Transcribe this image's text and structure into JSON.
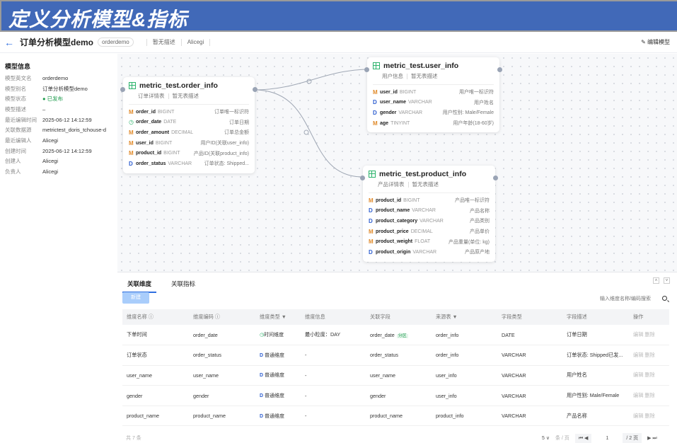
{
  "banner": {
    "title": "定义分析模型&指标"
  },
  "header": {
    "title": "订单分析模型demo",
    "tag": "orderdemo",
    "description": "暂无描述",
    "owner": "Alicegi",
    "edit_label": "编辑模型"
  },
  "info": {
    "heading": "模型信息",
    "rows": [
      {
        "k": "模型英文名",
        "v": "orderdemo"
      },
      {
        "k": "模型别名",
        "v": "订单分析模型demo"
      },
      {
        "k": "模型状态",
        "v": "● 已发布"
      },
      {
        "k": "模型描述",
        "v": "–"
      },
      {
        "k": "最近编辑时间",
        "v": "2025-06-12 14:12:59"
      },
      {
        "k": "关联数据源",
        "v": "metrictest_doris_tchouse-d"
      },
      {
        "k": "最近编辑人",
        "v": "Alicegi"
      },
      {
        "k": "创建时间",
        "v": "2025-06-12 14:12:59"
      },
      {
        "k": "创建人",
        "v": "Alicegi"
      },
      {
        "k": "负责人",
        "v": "Alicegi"
      }
    ]
  },
  "tables": [
    {
      "name": "metric_test.order_info",
      "alias": "订单详情表",
      "desc": "暂无表描述",
      "fields": [
        {
          "t": "M",
          "n": "order_id",
          "ty": "BIGINT",
          "d": "订单唯一标识符"
        },
        {
          "t": "T",
          "n": "order_date",
          "ty": "DATE",
          "d": "订单日期"
        },
        {
          "t": "M",
          "n": "order_amount",
          "ty": "DECIMAL",
          "d": "订单总金额"
        },
        {
          "t": "M",
          "n": "user_id",
          "ty": "BIGINT",
          "d": "用户ID(关联user_info)"
        },
        {
          "t": "M",
          "n": "product_id",
          "ty": "BIGINT",
          "d": "产品ID(关联product_info)"
        },
        {
          "t": "D",
          "n": "order_status",
          "ty": "VARCHAR",
          "d": "订单状态: Shipped..."
        }
      ]
    },
    {
      "name": "metric_test.user_info",
      "alias": "用户信息",
      "desc": "暂无表描述",
      "fields": [
        {
          "t": "M",
          "n": "user_id",
          "ty": "BIGINT",
          "d": "用户唯一标识符"
        },
        {
          "t": "D",
          "n": "user_name",
          "ty": "VARCHAR",
          "d": "用户姓名"
        },
        {
          "t": "D",
          "n": "gender",
          "ty": "VARCHAR",
          "d": "用户性别: Male/Female"
        },
        {
          "t": "M",
          "n": "age",
          "ty": "TINYINT",
          "d": "用户年龄(18-60岁)"
        }
      ]
    },
    {
      "name": "metric_test.product_info",
      "alias": "产品详情表",
      "desc": "暂无表描述",
      "fields": [
        {
          "t": "M",
          "n": "product_id",
          "ty": "BIGINT",
          "d": "产品唯一标识符"
        },
        {
          "t": "D",
          "n": "product_name",
          "ty": "VARCHAR",
          "d": "产品名称"
        },
        {
          "t": "D",
          "n": "product_category",
          "ty": "VARCHAR",
          "d": "产品类别"
        },
        {
          "t": "M",
          "n": "product_price",
          "ty": "DECIMAL",
          "d": "产品单价"
        },
        {
          "t": "M",
          "n": "product_weight",
          "ty": "FLOAT",
          "d": "产品重量(单位: kg)"
        },
        {
          "t": "D",
          "n": "product_origin",
          "ty": "VARCHAR",
          "d": "产品原产地"
        }
      ]
    }
  ],
  "bottom": {
    "tabs": [
      "关联维度",
      "关联指标"
    ],
    "new_label": "新建",
    "search_placeholder": "输入维度名称/编码搜索",
    "columns": [
      "维度名称 ⓘ",
      "维度编码 ⓘ",
      "维度类型 ▼",
      "维度信息",
      "关联字段",
      "来源表 ▼",
      "字段类型",
      "字段描述",
      "操作"
    ],
    "rows": [
      [
        "下单时间",
        "order_date",
        "时间维度",
        "最小粒度：DAY",
        "order_date",
        "order_info",
        "DATE",
        "订单日期"
      ],
      [
        "订单状态",
        "order_status",
        "普通维度",
        "-",
        "order_status",
        "order_info",
        "VARCHAR",
        "订单状态: Shipped已发..."
      ],
      [
        "user_name",
        "user_name",
        "普通维度",
        "-",
        "user_name",
        "user_info",
        "VARCHAR",
        "用户姓名"
      ],
      [
        "gender",
        "gender",
        "普通维度",
        "-",
        "gender",
        "user_info",
        "VARCHAR",
        "用户性别: Male/Female"
      ],
      [
        "product_name",
        "product_name",
        "普通维度",
        "-",
        "product_name",
        "product_info",
        "VARCHAR",
        "产品名称"
      ]
    ],
    "partition_label": "分区",
    "actions": [
      "编辑",
      "删除"
    ],
    "total": "共 7 条",
    "page_size": "5 ∨",
    "per_page": "条 / 页",
    "page": "1",
    "pages": "/ 2 页"
  }
}
